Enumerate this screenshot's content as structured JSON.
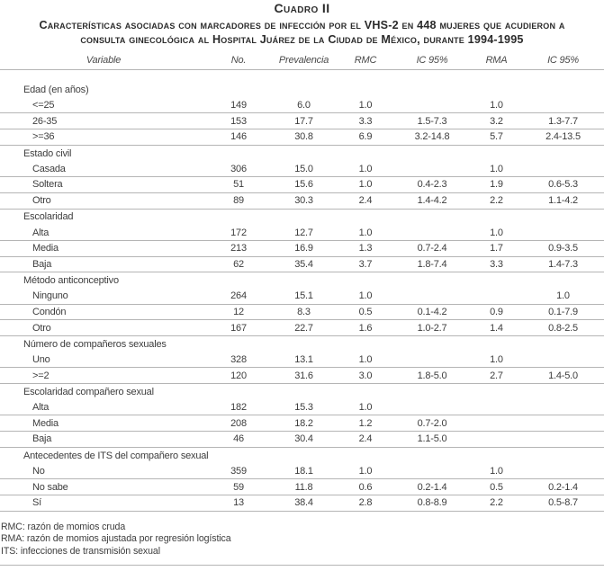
{
  "title": {
    "heading": "Cuadro II",
    "subtitle_lines": [
      "Características asociadas con marcadores de infección por el VHS-2 en 448 mujeres que acudieron a",
      "consulta ginecológica al Hospital Juárez de la Ciudad de México, durante 1994-1995"
    ]
  },
  "columns": [
    "Variable",
    "No.",
    "Prevalencia",
    "RMC",
    "IC 95%",
    "RMA",
    "IC 95%"
  ],
  "groups": [
    {
      "label": "Edad (en años)",
      "rows": [
        {
          "variable": "<=25",
          "no": "149",
          "prevalencia": "6.0",
          "rmc": "1.0",
          "ic_rmc": "",
          "rma": "1.0",
          "ic_rma": ""
        },
        {
          "variable": "26-35",
          "no": "153",
          "prevalencia": "17.7",
          "rmc": "3.3",
          "ic_rmc": "1.5-7.3",
          "rma": "3.2",
          "ic_rma": "1.3-7.7"
        },
        {
          "variable": ">=36",
          "no": "146",
          "prevalencia": "30.8",
          "rmc": "6.9",
          "ic_rmc": "3.2-14.8",
          "rma": "5.7",
          "ic_rma": "2.4-13.5"
        }
      ]
    },
    {
      "label": "Estado civil",
      "rows": [
        {
          "variable": "Casada",
          "no": "306",
          "prevalencia": "15.0",
          "rmc": "1.0",
          "ic_rmc": "",
          "rma": "1.0",
          "ic_rma": ""
        },
        {
          "variable": "Soltera",
          "no": "51",
          "prevalencia": "15.6",
          "rmc": "1.0",
          "ic_rmc": "0.4-2.3",
          "rma": "1.9",
          "ic_rma": "0.6-5.3"
        },
        {
          "variable": "Otro",
          "no": "89",
          "prevalencia": "30.3",
          "rmc": "2.4",
          "ic_rmc": "1.4-4.2",
          "rma": "2.2",
          "ic_rma": "1.1-4.2"
        }
      ]
    },
    {
      "label": "Escolaridad",
      "rows": [
        {
          "variable": "Alta",
          "no": "172",
          "prevalencia": "12.7",
          "rmc": "1.0",
          "ic_rmc": "",
          "rma": "1.0",
          "ic_rma": ""
        },
        {
          "variable": "Media",
          "no": "213",
          "prevalencia": "16.9",
          "rmc": "1.3",
          "ic_rmc": "0.7-2.4",
          "rma": "1.7",
          "ic_rma": "0.9-3.5"
        },
        {
          "variable": "Baja",
          "no": "62",
          "prevalencia": "35.4",
          "rmc": "3.7",
          "ic_rmc": "1.8-7.4",
          "rma": "3.3",
          "ic_rma": "1.4-7.3"
        }
      ]
    },
    {
      "label": "Método anticonceptivo",
      "rows": [
        {
          "variable": "Ninguno",
          "no": "264",
          "prevalencia": "15.1",
          "rmc": "1.0",
          "ic_rmc": "",
          "rma": "",
          "ic_rma": "1.0"
        },
        {
          "variable": "Condón",
          "no": "12",
          "prevalencia": "8.3",
          "rmc": "0.5",
          "ic_rmc": "0.1-4.2",
          "rma": "0.9",
          "ic_rma": "0.1-7.9"
        },
        {
          "variable": "Otro",
          "no": "167",
          "prevalencia": "22.7",
          "rmc": "1.6",
          "ic_rmc": "1.0-2.7",
          "rma": "1.4",
          "ic_rma": "0.8-2.5"
        }
      ]
    },
    {
      "label": "Número de compañeros sexuales",
      "rows": [
        {
          "variable": "Uno",
          "no": "328",
          "prevalencia": "13.1",
          "rmc": "1.0",
          "ic_rmc": "",
          "rma": "1.0",
          "ic_rma": ""
        },
        {
          "variable": ">=2",
          "no": "120",
          "prevalencia": "31.6",
          "rmc": "3.0",
          "ic_rmc": "1.8-5.0",
          "rma": "2.7",
          "ic_rma": "1.4-5.0"
        }
      ]
    },
    {
      "label": "Escolaridad compañero sexual",
      "rows": [
        {
          "variable": "Alta",
          "no": "182",
          "prevalencia": "15.3",
          "rmc": "1.0",
          "ic_rmc": "",
          "rma": "",
          "ic_rma": ""
        },
        {
          "variable": "Media",
          "no": "208",
          "prevalencia": "18.2",
          "rmc": "1.2",
          "ic_rmc": "0.7-2.0",
          "rma": "",
          "ic_rma": ""
        },
        {
          "variable": "Baja",
          "no": "46",
          "prevalencia": "30.4",
          "rmc": "2.4",
          "ic_rmc": "1.1-5.0",
          "rma": "",
          "ic_rma": ""
        }
      ]
    },
    {
      "label": "Antecedentes de ITS del compañero sexual",
      "rows": [
        {
          "variable": "No",
          "no": "359",
          "prevalencia": "18.1",
          "rmc": "1.0",
          "ic_rmc": "",
          "rma": "1.0",
          "ic_rma": ""
        },
        {
          "variable": "No sabe",
          "no": "59",
          "prevalencia": "11.8",
          "rmc": "0.6",
          "ic_rmc": "0.2-1.4",
          "rma": "0.5",
          "ic_rma": "0.2-1.4"
        },
        {
          "variable": "Sí",
          "no": "13",
          "prevalencia": "38.4",
          "rmc": "2.8",
          "ic_rmc": "0.8-8.9",
          "rma": "2.2",
          "ic_rma": "0.5-8.7"
        }
      ]
    }
  ],
  "footnotes": [
    "RMC: razón de momios cruda",
    "RMA: razón de momios ajustada por regresión logística",
    "ITS: infecciones de transmisión sexual"
  ],
  "colors": {
    "text": "#3d3d3d",
    "title_text": "#2b2b2b",
    "rule": "#b5b5b5",
    "background": "#ffffff"
  }
}
